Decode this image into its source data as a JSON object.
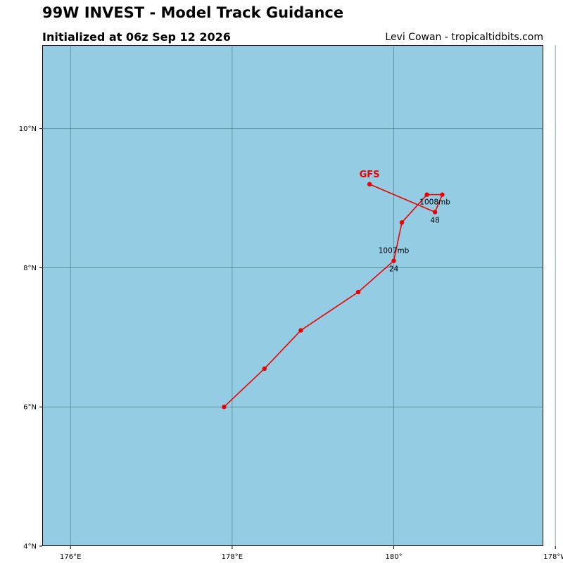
{
  "header": {
    "title": "99W INVEST - Model Track Guidance",
    "subtitle": "Initialized at 06z Sep 12 2026",
    "credit": "Levi Cowan - tropicaltidbits.com"
  },
  "map": {
    "ocean_color": "#94cde3",
    "grid_color": "#3f6f78",
    "lon_range": [
      175.65,
      181.85
    ],
    "lat_range": [
      4.0,
      11.2
    ],
    "lon_ticks": [
      {
        "value": 176,
        "label": "176°E"
      },
      {
        "value": 178,
        "label": "178°E"
      },
      {
        "value": 180,
        "label": "180°"
      },
      {
        "value": 182,
        "label": "178°W"
      }
    ],
    "lat_ticks": [
      {
        "value": 4,
        "label": "4°N"
      },
      {
        "value": 6,
        "label": "6°N"
      },
      {
        "value": 8,
        "label": "8°N"
      },
      {
        "value": 10,
        "label": "10°N"
      }
    ]
  },
  "tracks": [
    {
      "model": "GFS",
      "color": "#ee0000",
      "points": [
        {
          "lon": 177.9,
          "lat": 6.0
        },
        {
          "lon": 178.4,
          "lat": 6.55
        },
        {
          "lon": 178.85,
          "lat": 7.1
        },
        {
          "lon": 179.56,
          "lat": 7.65
        },
        {
          "lon": 180.0,
          "lat": 8.1,
          "hour_label": "24",
          "pressure_label": "1007mb"
        },
        {
          "lon": 180.1,
          "lat": 8.65
        },
        {
          "lon": 180.41,
          "lat": 9.05
        },
        {
          "lon": 180.6,
          "lat": 9.05
        },
        {
          "lon": 180.51,
          "lat": 8.8,
          "hour_label": "48",
          "pressure_label": "1008mb"
        },
        {
          "lon": 179.7,
          "lat": 9.2,
          "model_label": "GFS"
        }
      ]
    }
  ]
}
